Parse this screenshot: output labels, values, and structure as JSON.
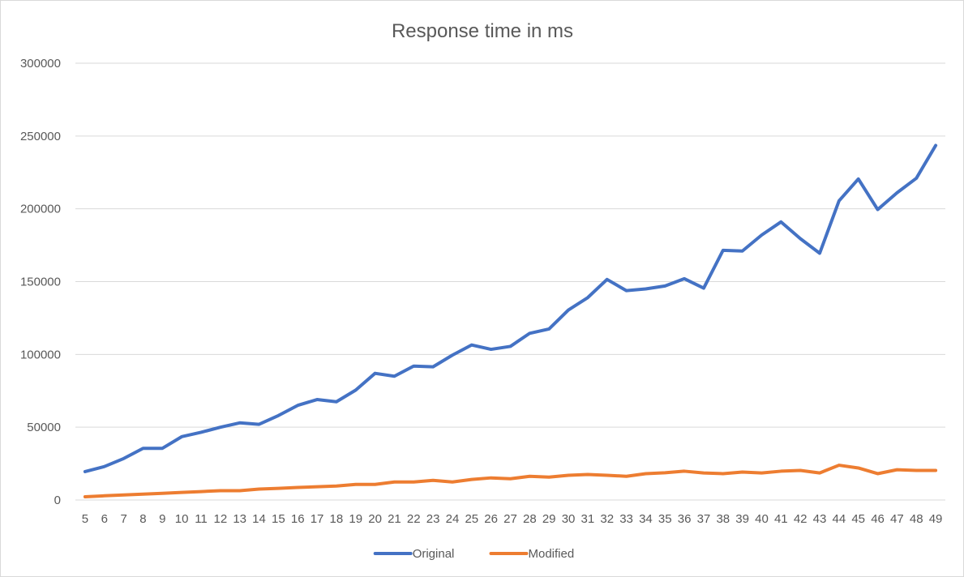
{
  "chart_data": {
    "type": "line",
    "title": "Response  time in ms",
    "xlabel": "",
    "ylabel": "",
    "x": [
      5,
      6,
      7,
      8,
      9,
      10,
      11,
      12,
      13,
      14,
      15,
      16,
      17,
      18,
      19,
      20,
      21,
      22,
      23,
      24,
      25,
      26,
      27,
      28,
      29,
      30,
      31,
      32,
      33,
      34,
      35,
      36,
      37,
      38,
      39,
      40,
      41,
      42,
      43,
      44,
      45,
      46,
      47,
      48,
      49
    ],
    "ylim": [
      0,
      300000
    ],
    "yticks": [
      0,
      50000,
      100000,
      150000,
      200000,
      250000,
      300000
    ],
    "grid": true,
    "legend_position": "bottom",
    "series": [
      {
        "name": "Original",
        "color": "#4472c4",
        "values": [
          19500,
          23000,
          28500,
          35500,
          35500,
          43500,
          46500,
          50000,
          53000,
          52000,
          58000,
          65000,
          69000,
          67500,
          75500,
          87000,
          85000,
          92000,
          91500,
          99500,
          106500,
          103500,
          105500,
          114500,
          117500,
          130500,
          139000,
          151500,
          143800,
          145000,
          147000,
          152000,
          145500,
          171500,
          171000,
          182000,
          191000,
          179500,
          169500,
          205500,
          220500,
          199500,
          211000,
          221000,
          243500
        ]
      },
      {
        "name": "Modified",
        "color": "#ed7d31",
        "values": [
          2200,
          2900,
          3500,
          4000,
          4600,
          5200,
          5800,
          6400,
          6400,
          7500,
          8000,
          8600,
          9100,
          9600,
          10700,
          10700,
          12400,
          12400,
          13500,
          12400,
          14100,
          15200,
          14600,
          16300,
          15700,
          17000,
          17500,
          17000,
          16300,
          18100,
          18700,
          19800,
          18600,
          18100,
          19200,
          18600,
          19800,
          20300,
          18600,
          23900,
          22000,
          18100,
          20800,
          20300,
          20300
        ]
      }
    ]
  }
}
